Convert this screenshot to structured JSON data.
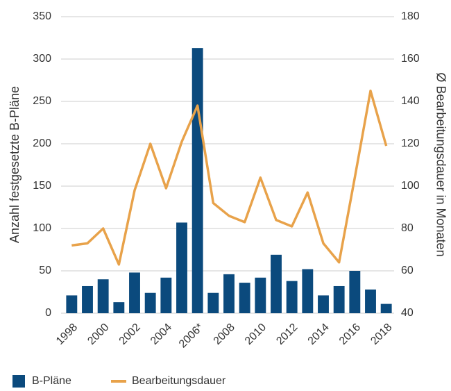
{
  "chart_data": {
    "type": "bar_line",
    "categories": [
      "1998",
      null,
      "2000",
      null,
      "2002",
      null,
      "2004",
      null,
      "2006*",
      null,
      "2008",
      null,
      "2010",
      null,
      "2012",
      null,
      "2014",
      null,
      "2016",
      null,
      "2018"
    ],
    "ylabel": "Anzahl festgesetzte B-Pläne",
    "y2label": "Ø Bearbeitungsdauer in Monaten",
    "series": [
      {
        "name": "B-Pläne",
        "color": "#0b4a7d",
        "type": "bar",
        "values": [
          21,
          32,
          40,
          13,
          48,
          24,
          42,
          107,
          313,
          24,
          46,
          36,
          42,
          69,
          38,
          52,
          21,
          32,
          50,
          28,
          11
        ]
      },
      {
        "name": "Bearbeitungsdauer",
        "color": "#e8a24a",
        "type": "line",
        "axis": "y2",
        "values": [
          72,
          73,
          80,
          63,
          98,
          120,
          99,
          121,
          138,
          92,
          86,
          83,
          104,
          84,
          81,
          97,
          73,
          64,
          104,
          145,
          119
        ]
      }
    ],
    "ylim": [
      0,
      350
    ],
    "yticks": [
      0,
      50,
      100,
      150,
      200,
      250,
      300,
      350
    ],
    "y2lim": [
      40,
      180
    ],
    "y2ticks": [
      40,
      60,
      80,
      100,
      120,
      140,
      160,
      180
    ],
    "grid": true,
    "legend": "bottom"
  }
}
